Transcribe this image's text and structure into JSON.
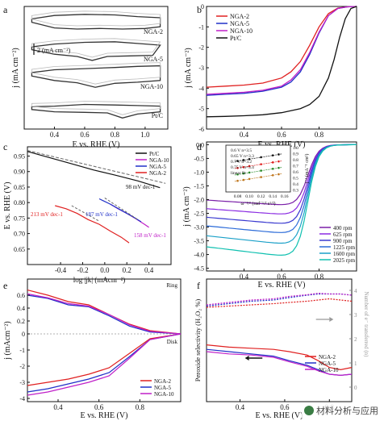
{
  "chart_data": [
    {
      "panel": "a",
      "type": "line",
      "ylabel": "j (mA cm⁻²)",
      "xlabel": "E vs. RHE (V)",
      "xlim": [
        0.2,
        1.15
      ],
      "xticks": [
        "0.4",
        "0.6",
        "0.8",
        "1.0"
      ],
      "scale_bar": "2 (mA cm⁻²)",
      "series": [
        {
          "name": "NGA-2",
          "values": [
            [
              0.25,
              0.6
            ],
            [
              0.4,
              0.1
            ],
            [
              0.55,
              0.0
            ],
            [
              0.7,
              0.05
            ],
            [
              0.85,
              0.0
            ],
            [
              1.0,
              0.05
            ],
            [
              1.1,
              0.2
            ],
            [
              1.1,
              1.0
            ],
            [
              0.95,
              1.1
            ],
            [
              0.8,
              1.25
            ],
            [
              0.6,
              1.3
            ],
            [
              0.4,
              1.2
            ],
            [
              0.25,
              0.9
            ]
          ]
        },
        {
          "name": "NGA-5",
          "values": [
            [
              0.25,
              0.6
            ],
            [
              0.4,
              0.2
            ],
            [
              0.55,
              0.0
            ],
            [
              0.65,
              -0.35
            ],
            [
              0.75,
              0.0
            ],
            [
              0.9,
              0.05
            ],
            [
              1.05,
              0.1
            ],
            [
              1.1,
              1.0
            ],
            [
              0.95,
              1.15
            ],
            [
              0.8,
              1.3
            ],
            [
              0.6,
              1.25
            ],
            [
              0.4,
              1.1
            ],
            [
              0.25,
              0.85
            ]
          ]
        },
        {
          "name": "NGA-10",
          "values": [
            [
              0.25,
              0.7
            ],
            [
              0.4,
              0.3
            ],
            [
              0.55,
              0.1
            ],
            [
              0.67,
              -0.3
            ],
            [
              0.8,
              0.05
            ],
            [
              0.95,
              0.15
            ],
            [
              1.1,
              0.3
            ],
            [
              1.1,
              1.6
            ],
            [
              0.95,
              1.55
            ],
            [
              0.8,
              1.45
            ],
            [
              0.6,
              1.35
            ],
            [
              0.4,
              1.25
            ],
            [
              0.25,
              1.0
            ]
          ]
        },
        {
          "name": "Pt/C",
          "values": [
            [
              0.25,
              0.3
            ],
            [
              0.4,
              0.1
            ],
            [
              0.6,
              0.05
            ],
            [
              0.75,
              0.0
            ],
            [
              0.85,
              -0.45
            ],
            [
              0.95,
              -0.1
            ],
            [
              1.1,
              0.1
            ],
            [
              1.1,
              0.6
            ],
            [
              0.95,
              0.65
            ],
            [
              0.8,
              0.7
            ],
            [
              0.6,
              0.75
            ],
            [
              0.4,
              0.6
            ],
            [
              0.25,
              0.55
            ]
          ]
        }
      ]
    },
    {
      "panel": "b",
      "type": "line",
      "ylabel": "j (mA cm⁻²)",
      "xlabel": "E vs. RHE (V)",
      "xlim": [
        0.2,
        1.0
      ],
      "ylim": [
        -6,
        0
      ],
      "xticks": [
        "0.4",
        "0.6",
        "0.8"
      ],
      "yticks": [
        "0",
        "-1",
        "-2",
        "-3",
        "-4",
        "-5",
        "-6"
      ],
      "series": [
        {
          "name": "NGA-2",
          "color": "#e02020",
          "x": [
            0.2,
            0.3,
            0.4,
            0.5,
            0.6,
            0.65,
            0.7,
            0.75,
            0.8,
            0.85,
            0.9,
            0.95,
            1.0
          ],
          "values": [
            -3.95,
            -3.9,
            -3.85,
            -3.75,
            -3.5,
            -3.2,
            -2.7,
            -1.9,
            -1.0,
            -0.35,
            -0.08,
            -0.02,
            0
          ]
        },
        {
          "name": "NGA-5",
          "color": "#2030c8",
          "x": [
            0.2,
            0.3,
            0.4,
            0.5,
            0.6,
            0.65,
            0.7,
            0.75,
            0.8,
            0.85,
            0.9,
            0.95,
            1.0
          ],
          "values": [
            -4.35,
            -4.3,
            -4.25,
            -4.15,
            -3.95,
            -3.7,
            -3.2,
            -2.35,
            -1.3,
            -0.45,
            -0.1,
            -0.02,
            0
          ]
        },
        {
          "name": "NGA-10",
          "color": "#c020c8",
          "x": [
            0.2,
            0.3,
            0.4,
            0.5,
            0.6,
            0.65,
            0.7,
            0.75,
            0.8,
            0.85,
            0.9,
            0.95,
            1.0
          ],
          "values": [
            -4.3,
            -4.25,
            -4.2,
            -4.1,
            -3.9,
            -3.6,
            -3.1,
            -2.25,
            -1.25,
            -0.45,
            -0.1,
            -0.02,
            0
          ]
        },
        {
          "name": "Pt/C",
          "color": "#111111",
          "x": [
            0.2,
            0.3,
            0.4,
            0.5,
            0.6,
            0.7,
            0.75,
            0.8,
            0.85,
            0.88,
            0.91,
            0.94,
            0.97,
            1.0
          ],
          "values": [
            -5.4,
            -5.38,
            -5.35,
            -5.3,
            -5.2,
            -5.0,
            -4.8,
            -4.4,
            -3.5,
            -2.6,
            -1.5,
            -0.6,
            -0.1,
            0
          ]
        }
      ]
    },
    {
      "panel": "c",
      "type": "line",
      "ylabel": "E vs. RHE (V)",
      "xlabel": "log |jk| (mAcm⁻²)",
      "xlim": [
        -0.7,
        0.6
      ],
      "ylim": [
        0.6,
        0.98
      ],
      "xticks": [
        "-0.4",
        "-0.2",
        "0.0",
        "0.2",
        "0.4"
      ],
      "yticks": [
        "0.95",
        "0.90",
        "0.85",
        "0.80",
        "0.75",
        "0.70",
        "0.65"
      ],
      "annotations": [
        "98 mV dec-1",
        "213 mV dec-1",
        "187 mV dec-1",
        "158 mV dec-1"
      ],
      "series": [
        {
          "name": "Pt/C",
          "color": "#111111",
          "x": [
            -0.7,
            -0.5,
            -0.3,
            -0.1,
            0.1,
            0.3,
            0.5
          ],
          "values": [
            0.965,
            0.945,
            0.925,
            0.905,
            0.888,
            0.87,
            0.848
          ]
        },
        {
          "name": "NGA-10",
          "color": "#c020c8",
          "x": [
            0.05,
            0.12,
            0.2,
            0.28,
            0.36,
            0.4
          ],
          "values": [
            0.795,
            0.78,
            0.765,
            0.748,
            0.73,
            0.72
          ]
        },
        {
          "name": "NGA-5",
          "color": "#2030c8",
          "x": [
            -0.05,
            0.05,
            0.15,
            0.25,
            0.33
          ],
          "values": [
            0.812,
            0.795,
            0.775,
            0.755,
            0.738
          ]
        },
        {
          "name": "NGA-2",
          "color": "#e02020",
          "x": [
            -0.45,
            -0.35,
            -0.25,
            -0.15,
            -0.05,
            0.05,
            0.15,
            0.22
          ],
          "values": [
            0.79,
            0.78,
            0.765,
            0.745,
            0.73,
            0.708,
            0.688,
            0.67
          ]
        }
      ]
    },
    {
      "panel": "d",
      "type": "line",
      "ylabel": "j (mA cm⁻²)",
      "xlabel": "E vs. RHE (V)",
      "xlim": [
        0.2,
        1.0
      ],
      "ylim": [
        -4.6,
        0.1
      ],
      "xticks": [
        "0.4",
        "0.6",
        "0.8"
      ],
      "yticks": [
        "0.0",
        "-0.5",
        "-1.0",
        "-1.5",
        "-2.0",
        "-2.5",
        "-3.0",
        "-3.5",
        "-4.0",
        "-4.5"
      ],
      "legend_unit": "rpm",
      "series": [
        {
          "name": "400",
          "color": "#7a1fa8",
          "plateau": -2.25
        },
        {
          "name": "625",
          "color": "#8a2be2",
          "plateau": -2.6
        },
        {
          "name": "900",
          "color": "#3a3ad0",
          "plateau": -2.95
        },
        {
          "name": "1225",
          "color": "#2a6ad8",
          "plateau": -3.3
        },
        {
          "name": "1600",
          "color": "#1aa0c8",
          "plateau": -3.7
        },
        {
          "name": "2025",
          "color": "#10c0b0",
          "plateau": -4.15
        }
      ],
      "inset": {
        "xlabel": "ω⁻¹/² (rad⁻¹/² s¹/²)",
        "ylabel": "j⁻¹ (mA⁻¹ cm²)",
        "xticks": [
          "0.08",
          "0.10",
          "0.12",
          "0.14",
          "0.16"
        ],
        "yticks": [
          "1.0",
          "0.9",
          "0.8",
          "0.7",
          "0.6",
          "0.5",
          "0.4",
          "0.3"
        ],
        "legend": [
          "0.6 V  n=3.5",
          "0.65 V  n=3.3",
          "0.7 V  n=3.2",
          "0.75 V  n=3.4",
          "linear fit"
        ]
      }
    },
    {
      "panel": "e",
      "type": "line",
      "ylabel": "j (mAcm⁻²)",
      "xlabel": "E vs. RHE (V)",
      "xlim": [
        0.25,
        1.0
      ],
      "ylim": [
        -4.2,
        0.8
      ],
      "xticks": [
        "0.4",
        "0.6",
        "0.8"
      ],
      "yticks": [
        "0.6",
        "0.4",
        "0.2",
        "0",
        "-1",
        "-2",
        "-3",
        "-4"
      ],
      "annotations": [
        "Ring",
        "Disk"
      ],
      "series": [
        {
          "name": "NGA-2",
          "color": "#e02020"
        },
        {
          "name": "NGA-5",
          "color": "#2030c8"
        },
        {
          "name": "NGA-10",
          "color": "#c020c8"
        }
      ]
    },
    {
      "panel": "f",
      "type": "line",
      "ylabel": "Peroxide selectivity (H₂O₂ %)",
      "y2label": "Number of e⁻ transferred (n)",
      "xlabel": "E vs. RHE (V)",
      "xlim": [
        0.25,
        0.9
      ],
      "xticks": [
        "0.4",
        "0.6",
        "0.8"
      ],
      "y2ticks": [
        "4",
        "3",
        "2",
        "1",
        "0"
      ],
      "series": [
        {
          "name": "NGA-2",
          "color": "#e02020"
        },
        {
          "name": "NGA-5",
          "color": "#2030c8"
        },
        {
          "name": "NGA-10",
          "color": "#c020c8"
        }
      ]
    }
  ],
  "panel_labels": [
    "a",
    "b",
    "c",
    "d",
    "e",
    "f"
  ],
  "watermark": "材料分析与应用"
}
